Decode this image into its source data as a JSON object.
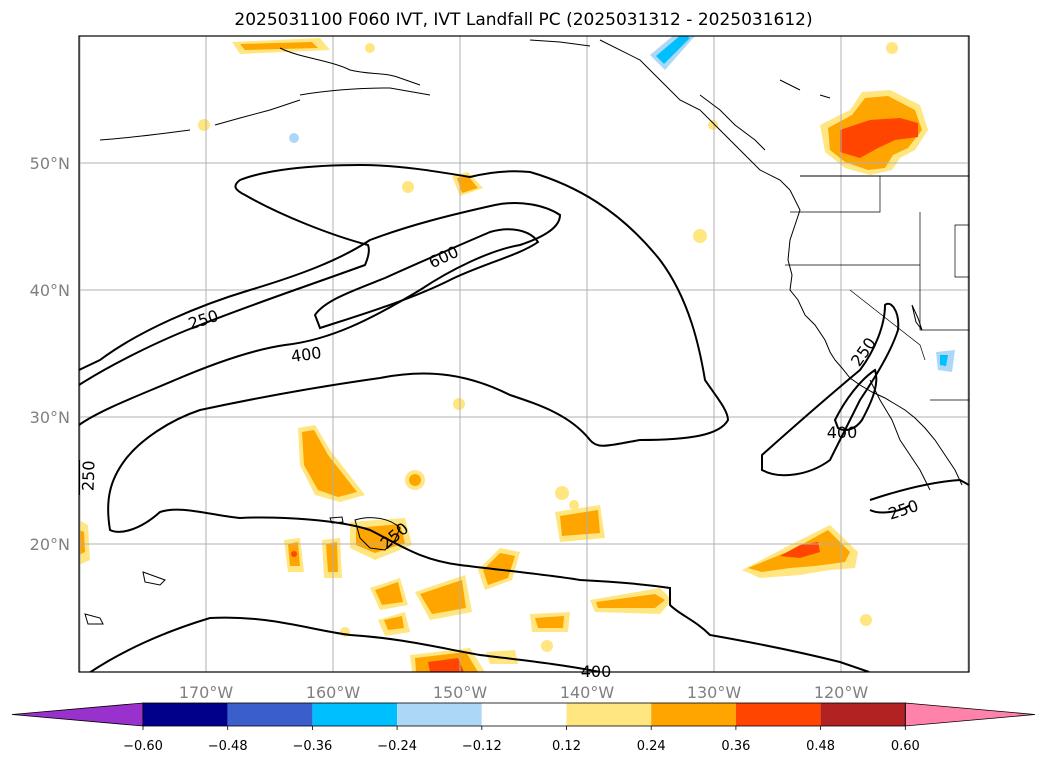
{
  "title": "2025031100 F060 IVT, IVT Landfall PC (2025031312 - 2025031612)",
  "lon_labels": [
    "170°W",
    "160°W",
    "150°W",
    "140°W",
    "130°W",
    "120°W"
  ],
  "lat_labels": [
    "50°N",
    "40°N",
    "30°N",
    "20°N"
  ],
  "contour_labels": [
    "250",
    "400",
    "600",
    "250",
    "250",
    "400",
    "250",
    "250",
    "400"
  ],
  "colorbar": {
    "ticks": [
      "−0.60",
      "−0.48",
      "−0.36",
      "−0.24",
      "−0.12",
      "0.12",
      "0.24",
      "0.36",
      "0.48",
      "0.60"
    ],
    "colors": [
      "#9932cc",
      "#00008b",
      "#3a5fcd",
      "#00bfff",
      "#add8f5",
      "#ffffff",
      "#ffe680",
      "#ffa500",
      "#ff4500",
      "#b22222",
      "#ff82ab"
    ]
  },
  "colors": {
    "pc_low": "#ffe680",
    "pc_mid": "#ffa500",
    "pc_high": "#ff4500",
    "neg_light": "#add8f5",
    "neg_mid": "#00bfff",
    "grid": "#b0b0b0"
  }
}
